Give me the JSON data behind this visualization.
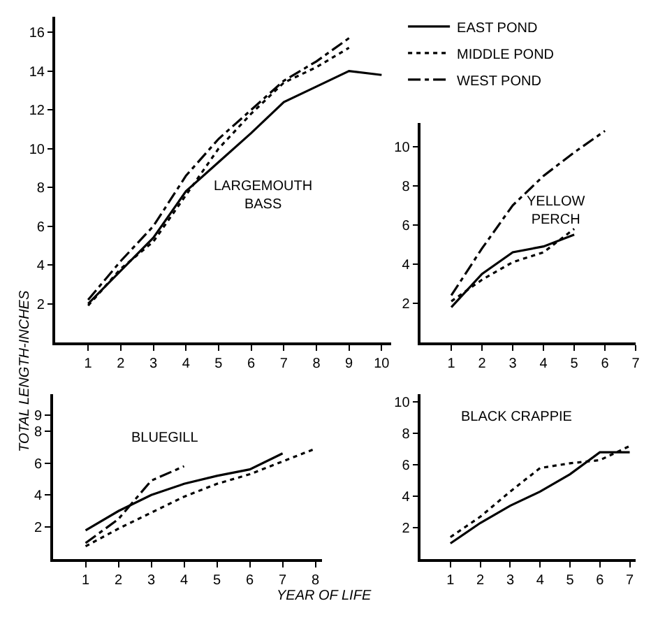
{
  "chart_data": [
    {
      "type": "line",
      "title": "LARGEMOUTH\nBASS",
      "xlim": [
        0,
        10.3
      ],
      "ylim": [
        0,
        16.8
      ],
      "xticks": [
        1,
        2,
        3,
        4,
        5,
        6,
        7,
        8,
        9,
        10
      ],
      "yticks": [
        2,
        4,
        6,
        8,
        10,
        12,
        14,
        16
      ],
      "legend": "top right",
      "grid": false,
      "marker": "none",
      "series": [
        {
          "name": "EAST POND",
          "color": "#000000",
          "line_style": "solid",
          "x": [
            1,
            2,
            3,
            4,
            5,
            6,
            7,
            8,
            9,
            10
          ],
          "values": [
            2.0,
            3.7,
            5.4,
            7.8,
            9.3,
            10.8,
            12.4,
            13.2,
            14.0,
            13.8
          ]
        },
        {
          "name": "MIDDLE POND",
          "color": "#000000",
          "line_style": "dotted",
          "x": [
            1,
            2,
            3,
            4,
            5,
            6,
            7,
            8,
            9
          ],
          "values": [
            1.9,
            3.8,
            5.2,
            7.6,
            10.0,
            11.8,
            13.4,
            14.2,
            15.2
          ]
        },
        {
          "name": "WEST POND",
          "color": "#000000",
          "line_style": "dashdot",
          "x": [
            1,
            2,
            3,
            4,
            5,
            6,
            7,
            8,
            9
          ],
          "values": [
            2.2,
            4.2,
            6.0,
            8.6,
            10.5,
            12.0,
            13.5,
            14.5,
            15.7
          ]
        }
      ]
    },
    {
      "type": "line",
      "title": "YELLOW\nPERCH",
      "xlim": [
        0,
        7
      ],
      "ylim": [
        0,
        11.2
      ],
      "xticks": [
        1,
        2,
        3,
        4,
        5,
        6,
        7
      ],
      "yticks": [
        2,
        4,
        6,
        8,
        10
      ],
      "grid": false,
      "marker": "none",
      "series": [
        {
          "color": "#000000",
          "line_style": "solid",
          "x": [
            1,
            2,
            3,
            4,
            5
          ],
          "values": [
            1.8,
            3.5,
            4.6,
            4.9,
            5.5
          ]
        },
        {
          "color": "#000000",
          "line_style": "dotted",
          "x": [
            1,
            2,
            3,
            4,
            5
          ],
          "values": [
            2.1,
            3.2,
            4.1,
            4.6,
            5.8
          ]
        },
        {
          "color": "#000000",
          "line_style": "dashdot",
          "x": [
            1,
            2,
            3,
            4,
            5,
            6
          ],
          "values": [
            2.4,
            4.8,
            7.0,
            8.5,
            9.7,
            10.8
          ]
        }
      ]
    },
    {
      "type": "line",
      "title": "BLUEGILL",
      "xlabel": "YEAR OF LIFE",
      "ylabel": "TOTAL LENGTH-INCHES",
      "xlim": [
        0,
        8.2
      ],
      "ylim": [
        0,
        10.3
      ],
      "xticks": [
        1,
        2,
        3,
        4,
        5,
        6,
        7,
        8
      ],
      "yticks": [
        2,
        4,
        6,
        8,
        9
      ],
      "grid": false,
      "marker": "none",
      "series": [
        {
          "color": "#000000",
          "line_style": "solid",
          "x": [
            1,
            2,
            3,
            4,
            5,
            6,
            7
          ],
          "values": [
            1.8,
            3.0,
            4.0,
            4.7,
            5.2,
            5.6,
            6.6
          ]
        },
        {
          "color": "#000000",
          "line_style": "dotted",
          "x": [
            1,
            2,
            3,
            4,
            5,
            6,
            7,
            8
          ],
          "values": [
            0.8,
            1.9,
            2.9,
            3.9,
            4.7,
            5.3,
            6.1,
            6.9
          ]
        },
        {
          "color": "#000000",
          "line_style": "dashdot",
          "x": [
            1,
            2,
            3,
            4
          ],
          "values": [
            1.0,
            2.5,
            4.9,
            5.8
          ]
        }
      ]
    },
    {
      "type": "line",
      "title": "BLACK CRAPPIE",
      "xlim": [
        0,
        7.2
      ],
      "ylim": [
        0,
        10.5
      ],
      "xticks": [
        1,
        2,
        3,
        4,
        5,
        6,
        7
      ],
      "yticks": [
        2,
        4,
        6,
        8,
        10
      ],
      "grid": false,
      "marker": "none",
      "series": [
        {
          "color": "#000000",
          "line_style": "solid",
          "x": [
            1,
            2,
            3,
            4,
            5,
            6,
            7
          ],
          "values": [
            1.0,
            2.3,
            3.4,
            4.3,
            5.4,
            6.8,
            6.8
          ]
        },
        {
          "color": "#000000",
          "line_style": "dotted",
          "x": [
            1,
            2,
            3,
            4,
            5,
            6,
            7
          ],
          "values": [
            1.4,
            2.7,
            4.3,
            5.8,
            6.1,
            6.3,
            7.2
          ]
        }
      ]
    }
  ]
}
